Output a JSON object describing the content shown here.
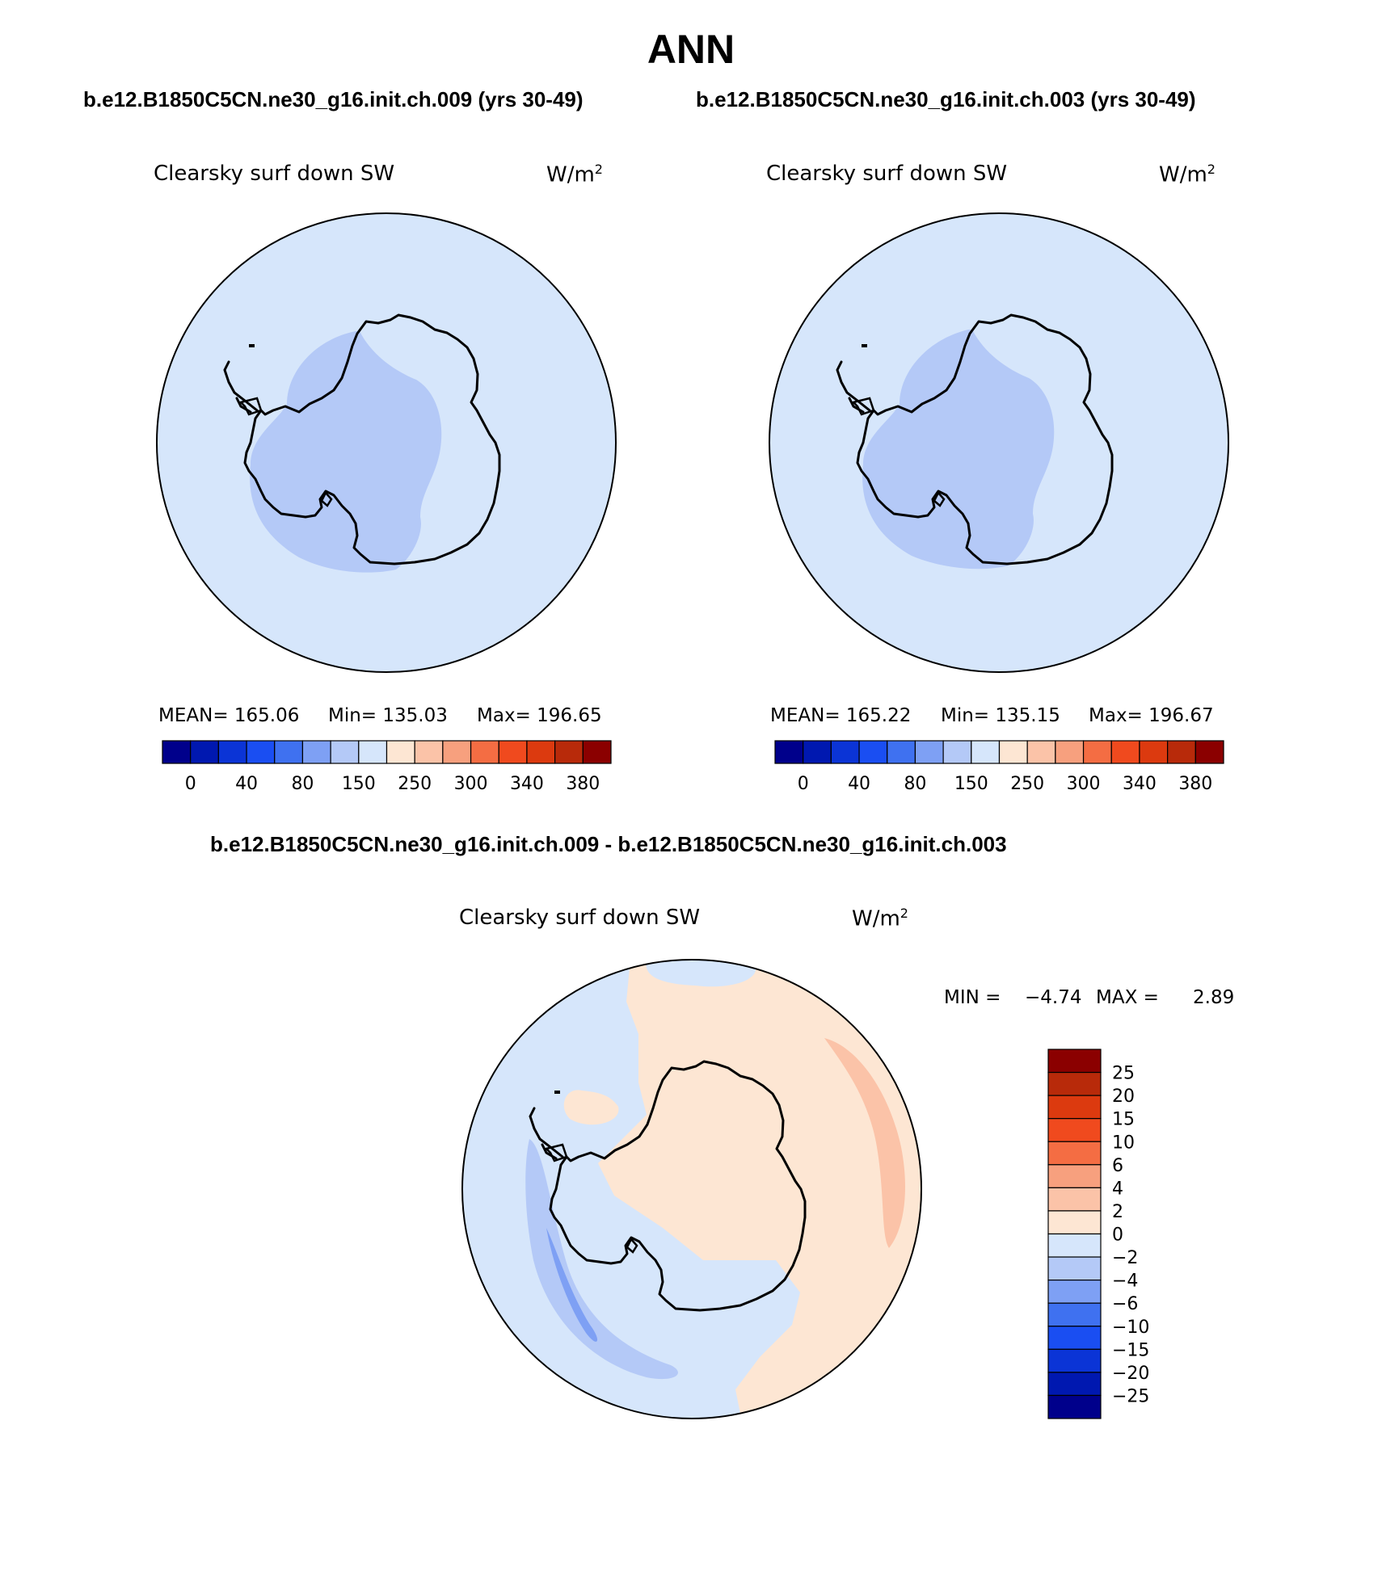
{
  "title": "ANN",
  "panels": [
    {
      "case_title": "b.e12.B1850C5CN.ne30_g16.init.ch.009 (yrs 30-49)",
      "variable": "Clearsky surf down SW",
      "units": "W/m",
      "units_sup": "2",
      "stats": {
        "mean": "MEAN= 165.06",
        "min": "Min= 135.03",
        "max": "Max= 196.65"
      },
      "colorbar_labels": [
        "0",
        "40",
        "80",
        "150",
        "250",
        "300",
        "340",
        "380"
      ]
    },
    {
      "case_title": "b.e12.B1850C5CN.ne30_g16.init.ch.003 (yrs 30-49)",
      "variable": "Clearsky surf down SW",
      "units": "W/m",
      "units_sup": "2",
      "stats": {
        "mean": "MEAN= 165.22",
        "min": "Min= 135.15",
        "max": "Max= 196.67"
      },
      "colorbar_labels": [
        "0",
        "40",
        "80",
        "150",
        "250",
        "300",
        "340",
        "380"
      ]
    }
  ],
  "diff": {
    "title": "b.e12.B1850C5CN.ne30_g16.init.ch.009 - b.e12.B1850C5CN.ne30_g16.init.ch.003",
    "variable": "Clearsky surf down SW",
    "units": "W/m",
    "units_sup": "2",
    "min_label": "MIN =",
    "min_value": "−4.74",
    "max_label": "MAX =",
    "max_value": "2.89",
    "colorbar_labels": [
      "25",
      "20",
      "15",
      "10",
      "6",
      "4",
      "2",
      "0",
      "−2",
      "−4",
      "−6",
      "−10",
      "−15",
      "−20",
      "−25"
    ]
  },
  "colors": {
    "palette": [
      "#00008b",
      "#0018b0",
      "#0b34d6",
      "#1a4ef2",
      "#3f71f0",
      "#7ea0f4",
      "#b4c9f7",
      "#d6e6fb",
      "#fde6d3",
      "#fbc3a8",
      "#f7a07e",
      "#f46d43",
      "#f04a1e",
      "#dc3a0f",
      "#b82a0a",
      "#8b0000"
    ],
    "light_blue": "#d6e6fb",
    "mid_blue": "#b4c9f7",
    "darker_blue": "#7ea0f4",
    "cream": "#fde6d3",
    "peach": "#fbc3a8"
  }
}
